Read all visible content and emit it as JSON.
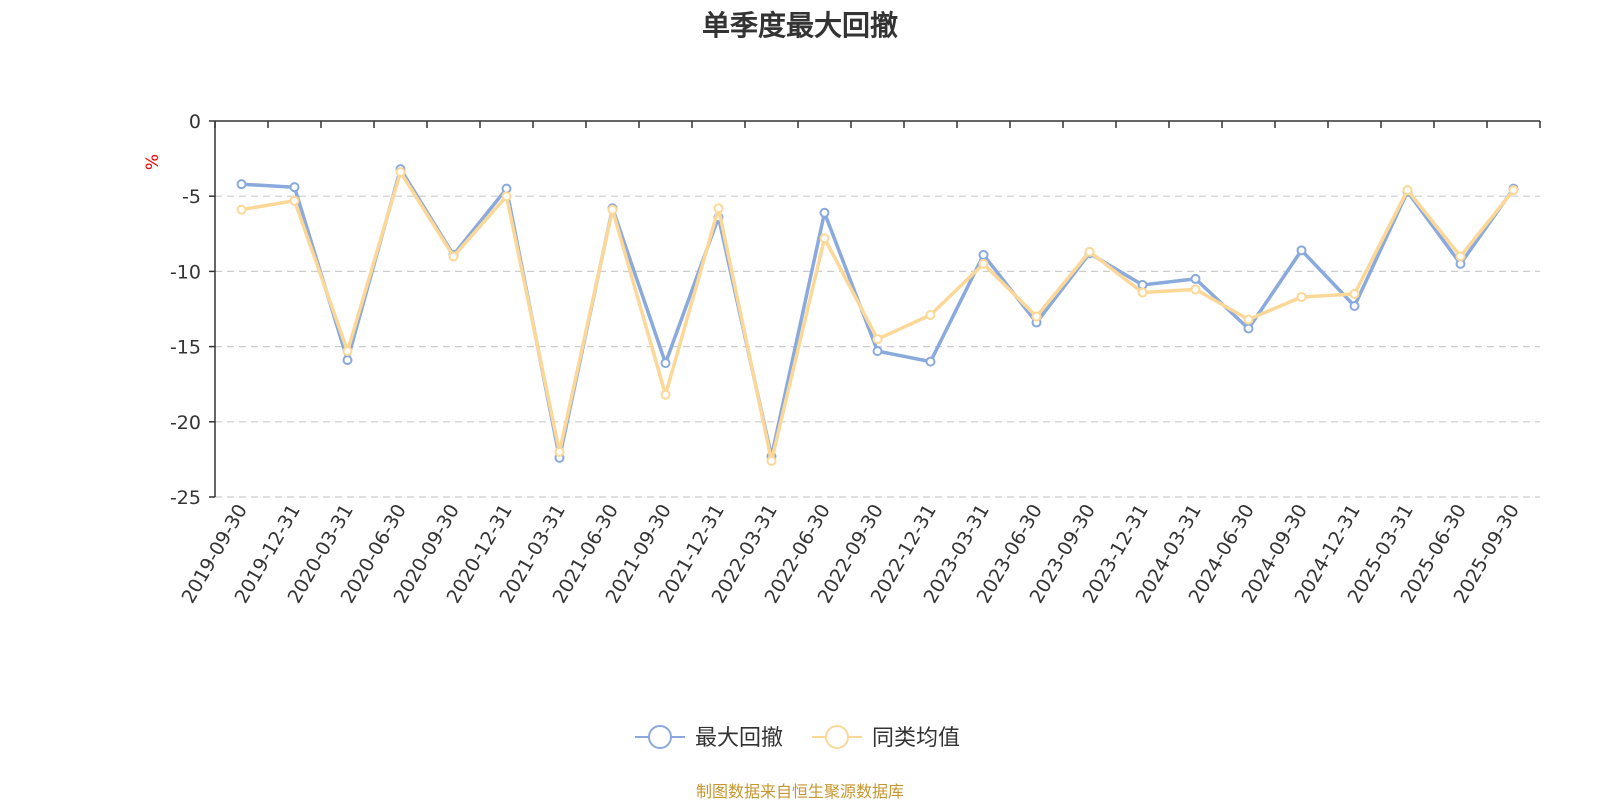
{
  "chart_data": {
    "type": "line",
    "title": "单季度最大回撤",
    "ylabel": "%",
    "xlabel": "",
    "ylim": [
      -25,
      0
    ],
    "yticks": [
      0,
      -5,
      -10,
      -15,
      -20,
      -25
    ],
    "grid": true,
    "legend_position": "bottom-center",
    "categories": [
      "2019-09-30",
      "2019-12-31",
      "2020-03-31",
      "2020-06-30",
      "2020-09-30",
      "2020-12-31",
      "2021-03-31",
      "2021-06-30",
      "2021-09-30",
      "2021-12-31",
      "2022-03-31",
      "2022-06-30",
      "2022-09-30",
      "2022-12-31",
      "2023-03-31",
      "2023-06-30",
      "2023-09-30",
      "2023-12-31",
      "2024-03-31",
      "2024-06-30",
      "2024-09-30",
      "2024-12-31",
      "2025-03-31",
      "2025-06-30",
      "2025-09-30"
    ],
    "series": [
      {
        "name": "最大回撤",
        "color": "#8aa9dc",
        "values": [
          -4.2,
          -4.4,
          -15.9,
          -3.2,
          -8.9,
          -4.5,
          -22.4,
          -5.8,
          -16.1,
          -6.4,
          -22.3,
          -6.1,
          -15.3,
          -16.0,
          -8.9,
          -13.4,
          -8.8,
          -10.9,
          -10.5,
          -13.8,
          -8.6,
          -12.3,
          -4.7,
          -9.5,
          -4.5
        ]
      },
      {
        "name": "同类均值",
        "color": "#fcd898",
        "values": [
          -5.9,
          -5.3,
          -15.3,
          -3.4,
          -9.0,
          -5.0,
          -22.0,
          -5.9,
          -18.2,
          -5.8,
          -22.6,
          -7.8,
          -14.5,
          -12.9,
          -9.5,
          -13.0,
          -8.7,
          -11.4,
          -11.2,
          -13.2,
          -11.7,
          -11.5,
          -4.6,
          -9.0,
          -4.6
        ]
      }
    ]
  },
  "source_note": "制图数据来自恒生聚源数据库"
}
